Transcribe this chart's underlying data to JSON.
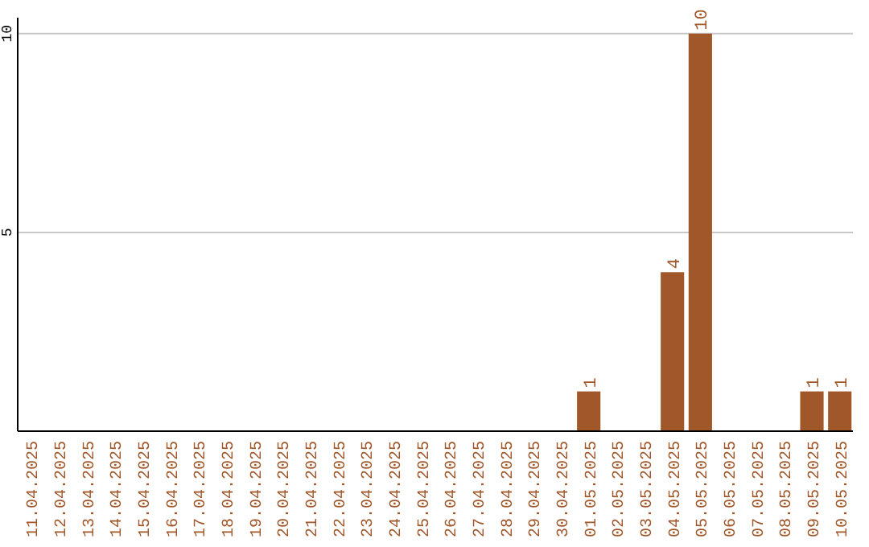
{
  "chart_data": {
    "type": "bar",
    "categories": [
      "11.04.2025",
      "12.04.2025",
      "13.04.2025",
      "14.04.2025",
      "15.04.2025",
      "16.04.2025",
      "17.04.2025",
      "18.04.2025",
      "19.04.2025",
      "20.04.2025",
      "21.04.2025",
      "22.04.2025",
      "23.04.2025",
      "24.04.2025",
      "25.04.2025",
      "26.04.2025",
      "27.04.2025",
      "28.04.2025",
      "29.04.2025",
      "30.04.2025",
      "01.05.2025",
      "02.05.2025",
      "03.05.2025",
      "04.05.2025",
      "05.05.2025",
      "06.05.2025",
      "07.05.2025",
      "08.05.2025",
      "09.05.2025",
      "10.05.2025"
    ],
    "values": [
      0,
      0,
      0,
      0,
      0,
      0,
      0,
      0,
      0,
      0,
      0,
      0,
      0,
      0,
      0,
      0,
      0,
      0,
      0,
      0,
      1,
      0,
      0,
      4,
      10,
      0,
      0,
      0,
      1,
      1
    ],
    "value_labels": [
      null,
      null,
      null,
      null,
      null,
      null,
      null,
      null,
      null,
      null,
      null,
      null,
      null,
      null,
      null,
      null,
      null,
      null,
      null,
      null,
      "1",
      null,
      null,
      "4",
      "10",
      null,
      null,
      null,
      "1",
      "1"
    ],
    "color": "#a0572a",
    "ylim": [
      0,
      10.4
    ],
    "yticks": [
      5,
      10
    ],
    "grid": "y"
  }
}
